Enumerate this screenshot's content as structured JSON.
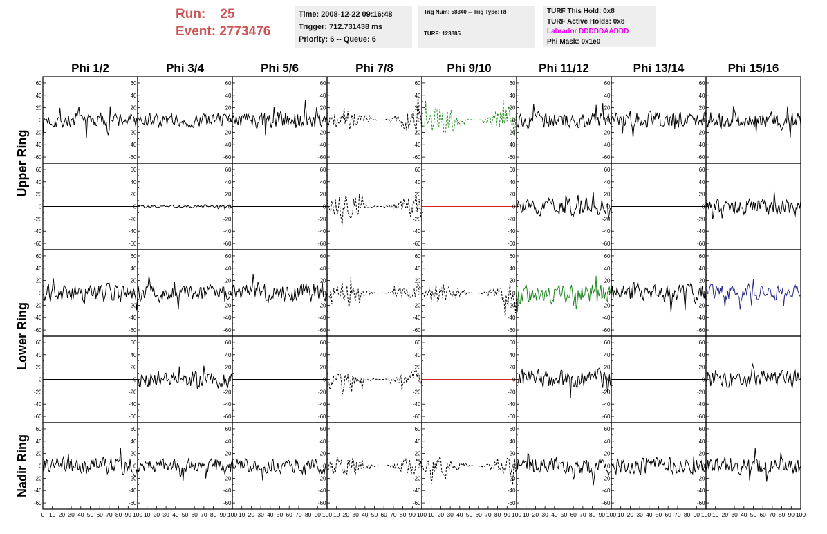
{
  "header": {
    "run_label": "Run:",
    "run_value": "25",
    "event_label": "Event:",
    "event_value": "2773476",
    "time_line": "Time: 2008-12-22 09:16:48",
    "trigger_line": "Trigger: 712.731438 ms",
    "priority_line": "Priority: 6 -- Queue: 6",
    "trig_line": "Trig Num: 58340 -- Trig Type: RF",
    "turf_line": "TURF: 123885",
    "turf_hold": "TURF This Hold: 0x8",
    "turf_active": "TURF Active Holds: 0x8",
    "labrador": "Labrador DDDDDAADDD",
    "phi_mask": "Phi Mask: 0x1e0",
    "labrador_color": "#ee00ee",
    "run_color": "#cc5555"
  },
  "chart_data": {
    "type": "line",
    "columns": [
      "Phi 1/2",
      "Phi 3/4",
      "Phi 5/6",
      "Phi 7/8",
      "Phi 9/10",
      "Phi 11/12",
      "Phi 13/14",
      "Phi 15/16"
    ],
    "ring_labels": [
      {
        "label": "Upper Ring",
        "rows": [
          0,
          1
        ]
      },
      {
        "label": "Lower Ring",
        "rows": [
          2,
          3
        ]
      },
      {
        "label": "Nadir Ring",
        "rows": [
          4
        ]
      }
    ],
    "xlim": [
      0,
      100
    ],
    "ylim": [
      -70,
      70
    ],
    "x_ticks": [
      0,
      10,
      20,
      30,
      40,
      50,
      60,
      70,
      80,
      90,
      100
    ],
    "y_ticks": [
      -60,
      -40,
      -20,
      0,
      20,
      40,
      60
    ],
    "traces": [
      [
        {
          "amp": 12,
          "style": "solid",
          "color": "#000000"
        },
        {
          "amp": 10,
          "style": "solid",
          "color": "#000000"
        },
        {
          "amp": 13,
          "style": "solid",
          "color": "#000000"
        },
        {
          "amp": 16,
          "style": "dashed",
          "color": "#000000"
        },
        {
          "amp": 20,
          "style": "dashed",
          "color": "#1a8a1a"
        },
        {
          "amp": 12,
          "style": "solid",
          "color": "#000000"
        },
        {
          "amp": 13,
          "style": "solid",
          "color": "#000000"
        },
        {
          "amp": 13,
          "style": "solid",
          "color": "#000000"
        }
      ],
      [
        {
          "amp": 0,
          "style": "flat",
          "color": "#000000"
        },
        {
          "amp": 2,
          "style": "solid",
          "color": "#000000"
        },
        {
          "amp": 0,
          "style": "flat",
          "color": "#000000"
        },
        {
          "amp": 16,
          "style": "dashed",
          "color": "#000000"
        },
        {
          "amp": 0,
          "style": "flat",
          "color": "#cc2222"
        },
        {
          "amp": 13,
          "style": "solid",
          "color": "#000000"
        },
        {
          "amp": 0,
          "style": "flat",
          "color": "#000000"
        },
        {
          "amp": 12,
          "style": "solid",
          "color": "#000000"
        }
      ],
      [
        {
          "amp": 13,
          "style": "solid",
          "color": "#000000"
        },
        {
          "amp": 11,
          "style": "solid",
          "color": "#000000"
        },
        {
          "amp": 13,
          "style": "solid",
          "color": "#000000"
        },
        {
          "amp": 13,
          "style": "dashed",
          "color": "#000000"
        },
        {
          "amp": 14,
          "style": "dashed",
          "color": "#000000"
        },
        {
          "amp": 14,
          "style": "solid",
          "color": "#228822"
        },
        {
          "amp": 13,
          "style": "solid",
          "color": "#000000"
        },
        {
          "amp": 12,
          "style": "solid",
          "color": "#2a2a88"
        }
      ],
      [
        {
          "amp": 0,
          "style": "flat",
          "color": "#000000"
        },
        {
          "amp": 13,
          "style": "solid",
          "color": "#000000"
        },
        {
          "amp": 0,
          "style": "flat",
          "color": "#000000"
        },
        {
          "amp": 11,
          "style": "dashed",
          "color": "#000000"
        },
        {
          "amp": 0,
          "style": "flat",
          "color": "#cc2222"
        },
        {
          "amp": 14,
          "style": "solid",
          "color": "#000000"
        },
        {
          "amp": 0,
          "style": "flat",
          "color": "#000000"
        },
        {
          "amp": 14,
          "style": "solid",
          "color": "#000000"
        }
      ],
      [
        {
          "amp": 13,
          "style": "solid",
          "color": "#000000"
        },
        {
          "amp": 11,
          "style": "solid",
          "color": "#000000"
        },
        {
          "amp": 12,
          "style": "solid",
          "color": "#000000"
        },
        {
          "amp": 13,
          "style": "dashed",
          "color": "#000000"
        },
        {
          "amp": 12,
          "style": "dashed",
          "color": "#000000"
        },
        {
          "amp": 13,
          "style": "solid",
          "color": "#000000"
        },
        {
          "amp": 13,
          "style": "solid",
          "color": "#000000"
        },
        {
          "amp": 13,
          "style": "solid",
          "color": "#000000"
        }
      ]
    ]
  }
}
